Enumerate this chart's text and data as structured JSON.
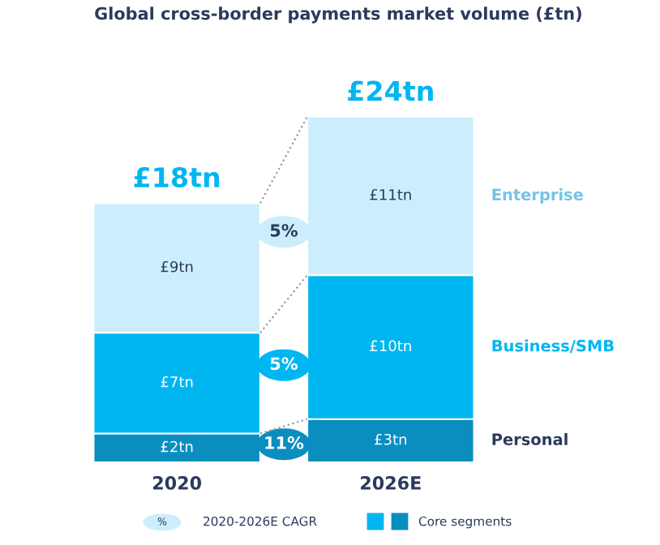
{
  "chart_data": {
    "type": "bar",
    "stacked": true,
    "title": "Global cross-border payments market volume (£tn)",
    "categories": [
      "2020",
      "2026E"
    ],
    "series": [
      {
        "name": "Personal",
        "color": "#0a8ec0",
        "values": [
          2,
          3
        ],
        "value_labels": [
          "£2tn",
          "£3tn"
        ]
      },
      {
        "name": "Business/SMB",
        "color": "#00b6f1",
        "values": [
          7,
          10
        ],
        "value_labels": [
          "£7tn",
          "£10tn"
        ]
      },
      {
        "name": "Enterprise",
        "color": "#cceefc",
        "values": [
          9,
          11
        ],
        "value_labels": [
          "£9tn",
          "£11tn"
        ]
      }
    ],
    "totals": [
      "£18tn",
      "£24tn"
    ],
    "annotations": [
      "11%",
      "5%",
      "5%",
      "%",
      "2020-2026E CAGR",
      "Core segments"
    ],
    "legend": false
  }
}
